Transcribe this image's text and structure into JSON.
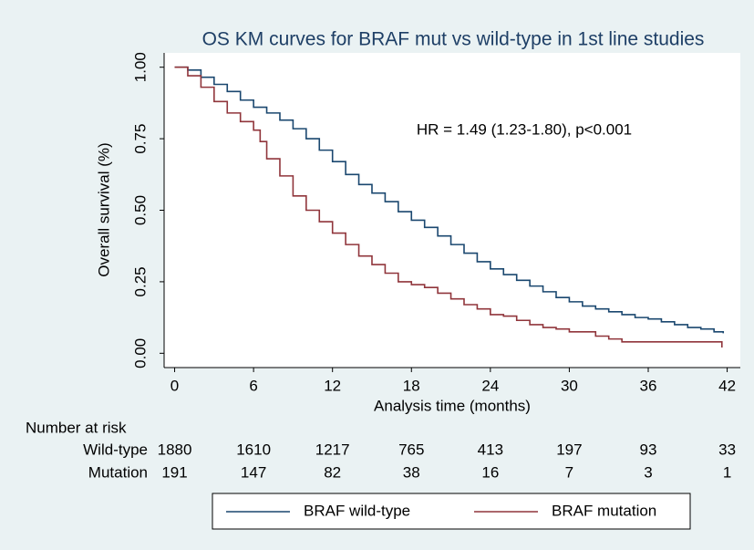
{
  "chart_data": {
    "type": "step",
    "title": "OS KM curves for BRAF mut vs wild-type in 1st line studies",
    "x_label": "Analysis time (months)",
    "y_label": "Overall survival (%)",
    "annotation": "HR = 1.49 (1.23-1.80), p<0.001",
    "xlim": [
      -0.8,
      43
    ],
    "xticks": [
      0,
      6,
      12,
      18,
      24,
      30,
      36,
      42
    ],
    "ylim": [
      -0.05,
      1.05
    ],
    "yticks": [
      {
        "value": 1,
        "label": "1.00"
      },
      0.75,
      {
        "value": 0.5,
        "label": "0.50"
      },
      0.25,
      {
        "value": 0,
        "label": "0.00"
      }
    ],
    "grid": false,
    "legend": "bottom",
    "series": [
      {
        "name": "BRAF wild-type",
        "color": "#1a476f",
        "x": [
          0,
          1,
          2,
          3,
          4,
          5,
          6,
          7,
          8,
          9,
          10,
          11,
          12,
          13,
          14,
          15,
          16,
          17,
          18,
          19,
          20,
          21,
          22,
          23,
          24,
          25,
          26,
          27,
          28,
          29,
          30,
          31,
          32,
          33,
          34,
          35,
          36,
          37,
          38,
          39,
          40,
          41,
          41.7
        ],
        "values": [
          1,
          0.99,
          0.965,
          0.94,
          0.915,
          0.885,
          0.86,
          0.84,
          0.815,
          0.785,
          0.75,
          0.71,
          0.67,
          0.625,
          0.59,
          0.56,
          0.53,
          0.495,
          0.465,
          0.44,
          0.41,
          0.38,
          0.35,
          0.32,
          0.295,
          0.275,
          0.255,
          0.235,
          0.215,
          0.195,
          0.18,
          0.165,
          0.155,
          0.145,
          0.135,
          0.125,
          0.12,
          0.11,
          0.1,
          0.09,
          0.085,
          0.075,
          0.07
        ]
      },
      {
        "name": "BRAF mutation",
        "color": "#90353b",
        "x": [
          0,
          1,
          2,
          3,
          4,
          5,
          6,
          6.5,
          7,
          8,
          9,
          10,
          11,
          12,
          13,
          14,
          15,
          16,
          17,
          18,
          19,
          20,
          21,
          22,
          23,
          24,
          25,
          26,
          27,
          28,
          29,
          30,
          32,
          33,
          34,
          41.5,
          41.6
        ],
        "values": [
          1,
          0.97,
          0.93,
          0.88,
          0.84,
          0.81,
          0.78,
          0.74,
          0.68,
          0.62,
          0.55,
          0.5,
          0.46,
          0.42,
          0.38,
          0.34,
          0.31,
          0.28,
          0.25,
          0.24,
          0.23,
          0.21,
          0.19,
          0.17,
          0.155,
          0.135,
          0.13,
          0.115,
          0.1,
          0.09,
          0.085,
          0.075,
          0.06,
          0.05,
          0.04,
          0.04,
          0.02
        ]
      }
    ],
    "risk_table": {
      "title": "Number at risk",
      "rows": [
        {
          "label": "Wild-type",
          "counts": [
            1880,
            1610,
            1217,
            765,
            413,
            197,
            93,
            33
          ]
        },
        {
          "label": "Mutation",
          "counts": [
            191,
            147,
            82,
            38,
            16,
            7,
            3,
            1
          ]
        }
      ]
    }
  }
}
